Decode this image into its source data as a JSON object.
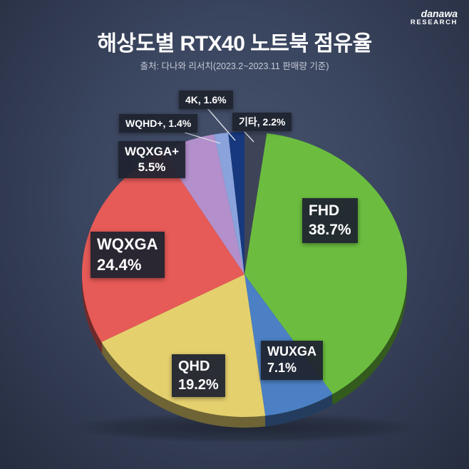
{
  "header": {
    "title": "해상도별 RTX40 노트북 점유율",
    "subtitle": "출처: 다나와 리서치(2023.2~2023.11 판매량 기준)",
    "logo": {
      "line1": "danawa",
      "line2": "RESEARCH"
    }
  },
  "chart_data": {
    "type": "pie",
    "title": "해상도별 RTX40 노트북 점유율",
    "source": "다나와 리서치(2023.2~2023.11 판매량 기준)",
    "unit": "%",
    "start_angle_deg": 0,
    "direction": "clockwise",
    "legend_position": "callout-labels",
    "slices": [
      {
        "id": "etc",
        "label": "기타",
        "value": 2.2,
        "color": "#3e4457"
      },
      {
        "id": "fhd",
        "label": "FHD",
        "value": 38.7,
        "color": "#6cbd3f"
      },
      {
        "id": "wuxga",
        "label": "WUXGA",
        "value": 7.1,
        "color": "#4b80c4"
      },
      {
        "id": "qhd",
        "label": "QHD",
        "value": 19.2,
        "color": "#e5d06e"
      },
      {
        "id": "wqxga",
        "label": "WQXGA",
        "value": 24.4,
        "color": "#e65a57"
      },
      {
        "id": "wqxga-plus",
        "label": "WQXGA+",
        "value": 5.5,
        "color": "#b38fcb"
      },
      {
        "id": "wqhd-plus",
        "label": "WQHD+",
        "value": 1.4,
        "color": "#8aa3dc"
      },
      {
        "id": "4k",
        "label": "4K",
        "value": 1.6,
        "color": "#17387d"
      }
    ]
  },
  "labels": {
    "fhd": {
      "line1": "FHD",
      "line2": "38.7%"
    },
    "wuxga": {
      "line1": "WUXGA",
      "line2": "7.1%"
    },
    "qhd": {
      "line1": "QHD",
      "line2": "19.2%"
    },
    "wqxga": {
      "line1": "WQXGA",
      "line2": "24.4%"
    },
    "wqxga_plus": {
      "line1": "WQXGA+",
      "line2": "5.5%"
    },
    "wqhd_plus": {
      "line1": "WQHD+, 1.4%"
    },
    "k4": {
      "line1": "4K, 1.6%"
    },
    "etc": {
      "line1": "기타, 2.2%"
    }
  }
}
